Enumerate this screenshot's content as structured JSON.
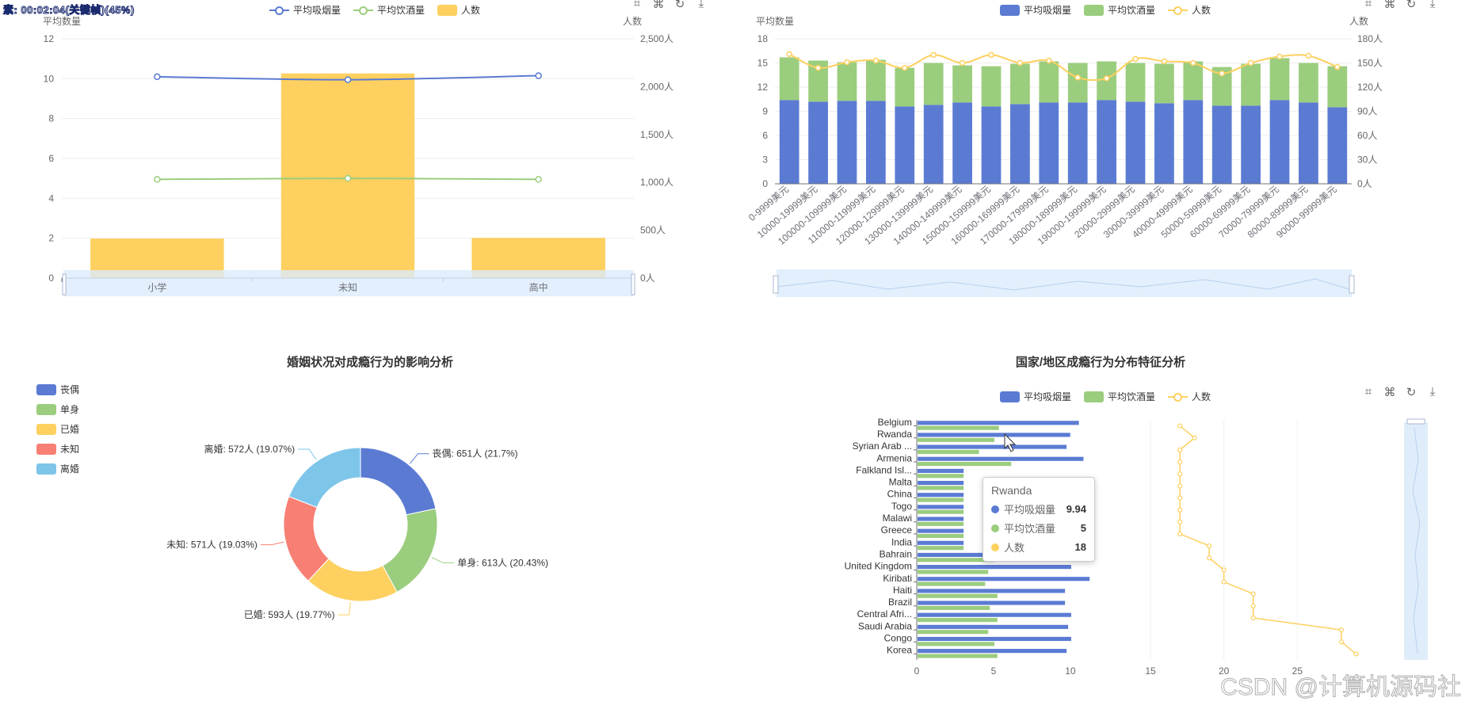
{
  "overlay_text": "素: 00:02:04(关键帧)(45%)",
  "watermark": "CSDN @计算机源码社",
  "colors": {
    "smoke": "#5b7bd3",
    "drink": "#9bcd7e",
    "people": "#fdd05f",
    "red": "#f87f73",
    "cyan": "#7ec5ea"
  },
  "toolbox_icons": [
    "zoom-icon",
    "zoom-reset-icon",
    "restore-icon",
    "download-icon"
  ],
  "chart1": {
    "legend": [
      "平均吸烟量",
      "平均饮酒量",
      "人数"
    ],
    "y_left_label": "平均数量",
    "y_right_label": "人数"
  },
  "chart2": {
    "legend": [
      "平均吸烟量",
      "平均饮酒量",
      "人数"
    ],
    "y_left_label": "平均数量",
    "y_right_label": "人数"
  },
  "chart3": {
    "title": "婚姻状况对成瘾行为的影响分析"
  },
  "chart4": {
    "title": "国家/地区成瘾行为分布特征分析",
    "legend": [
      "平均吸烟量",
      "平均饮酒量",
      "人数"
    ],
    "tooltip": {
      "title": "Rwanda",
      "rows": [
        {
          "name": "平均吸烟量",
          "value": "9.94"
        },
        {
          "name": "平均饮酒量",
          "value": "5"
        },
        {
          "name": "人数",
          "value": "18"
        }
      ]
    }
  },
  "chart_data": [
    {
      "type": "bar",
      "categories": [
        "小学",
        "未知",
        "高中"
      ],
      "series": [
        {
          "name": "平均吸烟量",
          "type": "line",
          "axis": "left",
          "values": [
            10.1,
            9.95,
            10.15
          ]
        },
        {
          "name": "平均饮酒量",
          "type": "line",
          "axis": "left",
          "values": [
            4.95,
            5.0,
            4.95
          ]
        },
        {
          "name": "人数",
          "type": "bar",
          "axis": "right",
          "values": [
            413,
            2138,
            420
          ]
        }
      ],
      "y_left": {
        "ticks": [
          0,
          2,
          4,
          6,
          8,
          10,
          12
        ],
        "range": [
          0,
          12
        ]
      },
      "y_right": {
        "ticks": [
          "0人",
          "500人",
          "1,000人",
          "1,500人",
          "2,000人",
          "2,500人"
        ],
        "range": [
          0,
          2500
        ]
      }
    },
    {
      "type": "bar",
      "categories": [
        "0-9999美元",
        "10000-19999美元",
        "100000-109999美元",
        "110000-119999美元",
        "120000-129999美元",
        "130000-139999美元",
        "140000-149999美元",
        "150000-159999美元",
        "160000-169999美元",
        "170000-179999美元",
        "180000-189999美元",
        "190000-199999美元",
        "20000-29999美元",
        "30000-39999美元",
        "40000-49999美元",
        "50000-59999美元",
        "60000-69999美元",
        "70000-79999美元",
        "80000-89999美元",
        "90000-99999美元"
      ],
      "stacked": true,
      "series": [
        {
          "name": "平均吸烟量",
          "type": "bar",
          "axis": "left",
          "values": [
            10.4,
            10.2,
            10.3,
            10.3,
            9.6,
            9.8,
            10.1,
            9.6,
            9.9,
            10.1,
            10.1,
            10.4,
            10.2,
            10.0,
            10.4,
            9.7,
            9.7,
            10.4,
            10.1,
            9.5
          ]
        },
        {
          "name": "平均饮酒量",
          "type": "bar",
          "axis": "left",
          "values": [
            5.3,
            5.1,
            4.8,
            5.1,
            4.8,
            5.2,
            4.6,
            5.0,
            5.0,
            5.1,
            4.9,
            4.8,
            4.8,
            4.9,
            4.8,
            4.8,
            5.2,
            5.2,
            4.9,
            5.1
          ]
        },
        {
          "name": "人数",
          "type": "line",
          "axis": "right",
          "values": [
            161,
            144,
            151,
            153,
            144,
            160,
            150,
            160,
            150,
            153,
            132,
            131,
            155,
            152,
            150,
            137,
            150,
            158,
            159,
            145
          ]
        }
      ],
      "y_left": {
        "ticks": [
          0,
          3,
          6,
          9,
          12,
          15,
          18
        ],
        "range": [
          0,
          18
        ]
      },
      "y_right": {
        "ticks": [
          "0人",
          "30人",
          "60人",
          "90人",
          "120人",
          "150人",
          "180人"
        ],
        "range": [
          0,
          180
        ]
      }
    },
    {
      "type": "pie",
      "legend": [
        "丧偶",
        "单身",
        "已婚",
        "未知",
        "离婚"
      ],
      "slices": [
        {
          "name": "丧偶",
          "value": 651,
          "label": "丧偶: 651人 (21.7%)"
        },
        {
          "name": "单身",
          "value": 613,
          "label": "单身: 613人 (20.43%)"
        },
        {
          "name": "已婚",
          "value": 593,
          "label": "已婚: 593人 (19.77%)"
        },
        {
          "name": "未知",
          "value": 571,
          "label": "未知: 571人 (19.03%)"
        },
        {
          "name": "离婚",
          "value": 572,
          "label": "离婚: 572人 (19.07%)"
        }
      ]
    },
    {
      "type": "bar",
      "orientation": "horizontal",
      "categories": [
        "Belgium",
        "Rwanda",
        "Syrian Arab ...",
        "Armenia",
        "Falkland Isl...",
        "Malta",
        "China",
        "Togo",
        "Malawi",
        "Greece",
        "India",
        "Bahrain",
        "United Kingdom",
        "Kiribati",
        "Haiti",
        "Brazil",
        "Central Afri...",
        "Saudi Arabia",
        "Congo",
        "Korea"
      ],
      "series": [
        {
          "name": "平均吸烟量",
          "values": [
            10.5,
            9.94,
            9.7,
            10.8,
            3,
            3,
            3,
            3,
            3,
            3,
            3,
            10.6,
            10.0,
            11.2,
            9.6,
            9.6,
            10.0,
            9.8,
            10.0,
            9.7
          ]
        },
        {
          "name": "平均饮酒量",
          "values": [
            5.3,
            5,
            4.0,
            6.1,
            3,
            3,
            3,
            3,
            3,
            3,
            3,
            5.0,
            4.6,
            4.4,
            5.2,
            4.7,
            5.2,
            4.6,
            5.0,
            5.2
          ]
        },
        {
          "name": "人数",
          "values": [
            17,
            18,
            17,
            17,
            17,
            17,
            17,
            17,
            17,
            17,
            19,
            19,
            20,
            20,
            22,
            22,
            22,
            28,
            28,
            29
          ]
        }
      ],
      "x_bar": {
        "ticks": [
          0,
          5,
          10
        ],
        "range": [
          0,
          11.5
        ]
      },
      "x_people": {
        "ticks": [
          15,
          20,
          25
        ],
        "range": [
          15,
          30
        ]
      }
    }
  ]
}
